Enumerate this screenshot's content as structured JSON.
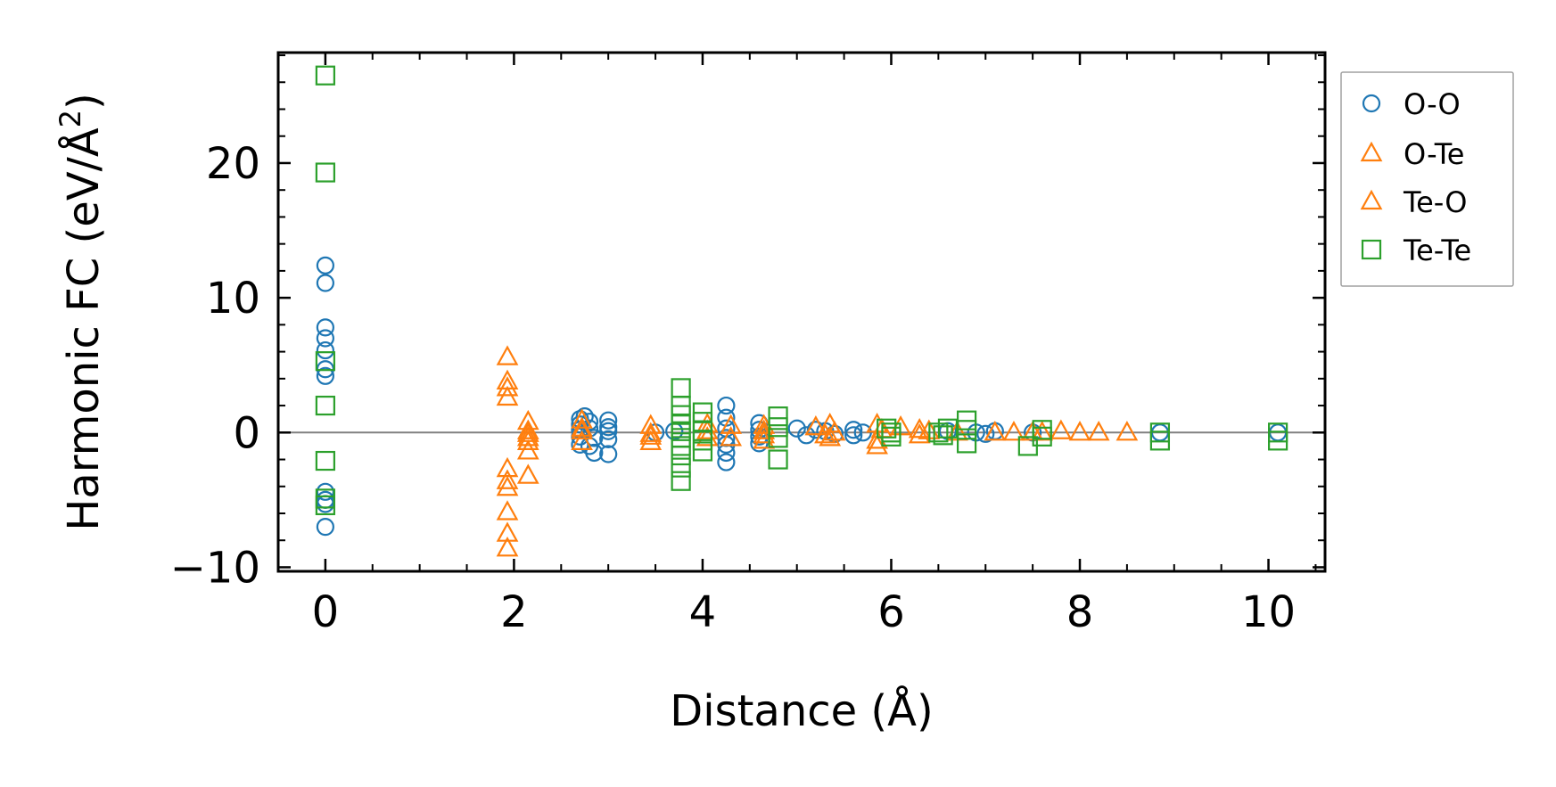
{
  "chart_data": {
    "type": "scatter",
    "title": "",
    "xlabel": "Distance (Å)",
    "ylabel": "Harmonic FC (eV/Å",
    "ylabel_superscript": "2",
    "ylabel_close": ")",
    "xlim": [
      -0.5,
      10.6
    ],
    "ylim": [
      -10.3,
      28.2
    ],
    "xticks": [
      0,
      2,
      4,
      6,
      8,
      10
    ],
    "xtick_labels": [
      "0",
      "2",
      "4",
      "6",
      "8",
      "10"
    ],
    "yticks": [
      -10,
      0,
      10,
      20
    ],
    "ytick_labels": [
      "−10",
      "0",
      "10",
      "20"
    ],
    "legend_position": "outside-right",
    "zero_line": true,
    "series": [
      {
        "name": "O-O",
        "marker": "circle",
        "color": "#1f77b4",
        "x": [
          0,
          0,
          0,
          0,
          0,
          0,
          0,
          0,
          0,
          0,
          0,
          2.7,
          2.7,
          2.7,
          2.7,
          2.7,
          2.75,
          2.8,
          2.8,
          2.8,
          2.85,
          2.85,
          3.0,
          3.0,
          3.0,
          3.0,
          3.0,
          3.5,
          3.7,
          4.25,
          4.25,
          4.25,
          4.25,
          4.25,
          4.25,
          4.25,
          4.6,
          4.6,
          4.6,
          4.6,
          5.0,
          5.1,
          5.2,
          5.3,
          5.4,
          5.6,
          5.6,
          5.7,
          6.6,
          6.9,
          7.0,
          7.1,
          7.5,
          8.85,
          10.1
        ],
        "y": [
          12.4,
          11.1,
          7.8,
          7.0,
          6.1,
          4.7,
          4.2,
          -4.4,
          -5.0,
          -5.3,
          -7.0,
          1.0,
          0.6,
          0.2,
          -0.3,
          -0.9,
          1.2,
          0.8,
          0.3,
          -1.0,
          -0.4,
          -1.5,
          0.9,
          0.4,
          0.1,
          -0.5,
          -1.6,
          0.0,
          0.1,
          2.0,
          1.1,
          0.3,
          -0.4,
          -0.9,
          -1.5,
          -2.2,
          0.7,
          0.2,
          -0.3,
          -0.8,
          0.3,
          -0.2,
          0.2,
          0.1,
          -0.1,
          0.2,
          -0.2,
          0.0,
          0.1,
          0.0,
          -0.1,
          0.1,
          0.0,
          0.0,
          0.0
        ]
      },
      {
        "name": "O-Te",
        "marker": "triangle",
        "color": "#ff7f0e",
        "x": [
          1.93,
          1.93,
          1.93,
          1.93,
          1.93,
          1.93,
          1.93,
          1.93,
          2.15,
          2.15,
          2.15,
          2.15,
          2.15,
          2.15,
          2.72,
          2.72,
          2.72,
          3.45,
          3.45,
          3.45,
          4.05,
          4.05,
          4.3,
          4.3,
          4.65,
          4.65,
          4.65,
          5.2,
          5.3,
          5.35,
          5.4,
          5.85,
          5.85,
          5.9,
          6.1,
          6.3,
          6.4,
          6.7,
          7.1,
          7.3,
          7.5,
          7.6,
          7.8,
          8.0,
          8.2,
          8.5
        ],
        "y": [
          5.6,
          3.8,
          3.3,
          2.6,
          -2.7,
          -3.6,
          -4.1,
          -5.9,
          0.8,
          0.1,
          -0.4,
          -0.7,
          -1.4,
          -3.2,
          0.9,
          0.1,
          -0.7,
          0.5,
          -0.1,
          -0.7,
          0.6,
          -0.4,
          0.5,
          -0.4,
          0.5,
          -0.2,
          -0.6,
          0.4,
          -0.2,
          0.6,
          0.0,
          0.6,
          -1.0,
          0.2,
          0.4,
          0.2,
          0.1,
          0.0,
          0.0,
          0.0,
          0.0,
          0.0,
          0.1,
          0.0,
          0.0,
          0.0
        ]
      },
      {
        "name": "Te-O",
        "marker": "triangle",
        "color": "#ff7f0e",
        "x": [
          1.93,
          1.93,
          2.15,
          2.72,
          3.45,
          4.05,
          4.65,
          5.35,
          5.85,
          6.3
        ],
        "y": [
          -7.5,
          -8.6,
          -0.1,
          0.3,
          -0.3,
          0.1,
          0.1,
          -0.4,
          -0.6,
          -0.2
        ]
      },
      {
        "name": "Te-Te",
        "marker": "square",
        "color": "#2ca02c",
        "x": [
          0,
          0,
          0,
          0,
          0,
          0,
          0,
          3.77,
          3.77,
          3.77,
          3.77,
          3.77,
          3.77,
          3.77,
          3.77,
          3.77,
          3.77,
          4.0,
          4.0,
          4.0,
          4.0,
          4.0,
          4.8,
          4.8,
          4.8,
          4.8,
          5.95,
          6.0,
          6.0,
          6.5,
          6.55,
          6.6,
          6.8,
          6.8,
          6.8,
          7.45,
          7.6,
          7.6,
          8.85,
          8.85,
          10.1,
          10.1
        ],
        "y": [
          26.5,
          19.3,
          5.3,
          2.0,
          -2.1,
          -4.9,
          -5.4,
          3.3,
          2.0,
          1.3,
          0.6,
          0.1,
          -0.4,
          -1.0,
          -1.7,
          -2.6,
          -3.6,
          1.5,
          0.8,
          0.1,
          -0.6,
          -1.4,
          1.2,
          0.4,
          -0.4,
          -2.0,
          0.3,
          -0.3,
          0.0,
          0.0,
          -0.2,
          0.3,
          0.9,
          0.2,
          -0.8,
          -1.0,
          0.2,
          -0.3,
          0.0,
          -0.6,
          0.0,
          -0.6
        ]
      }
    ]
  }
}
